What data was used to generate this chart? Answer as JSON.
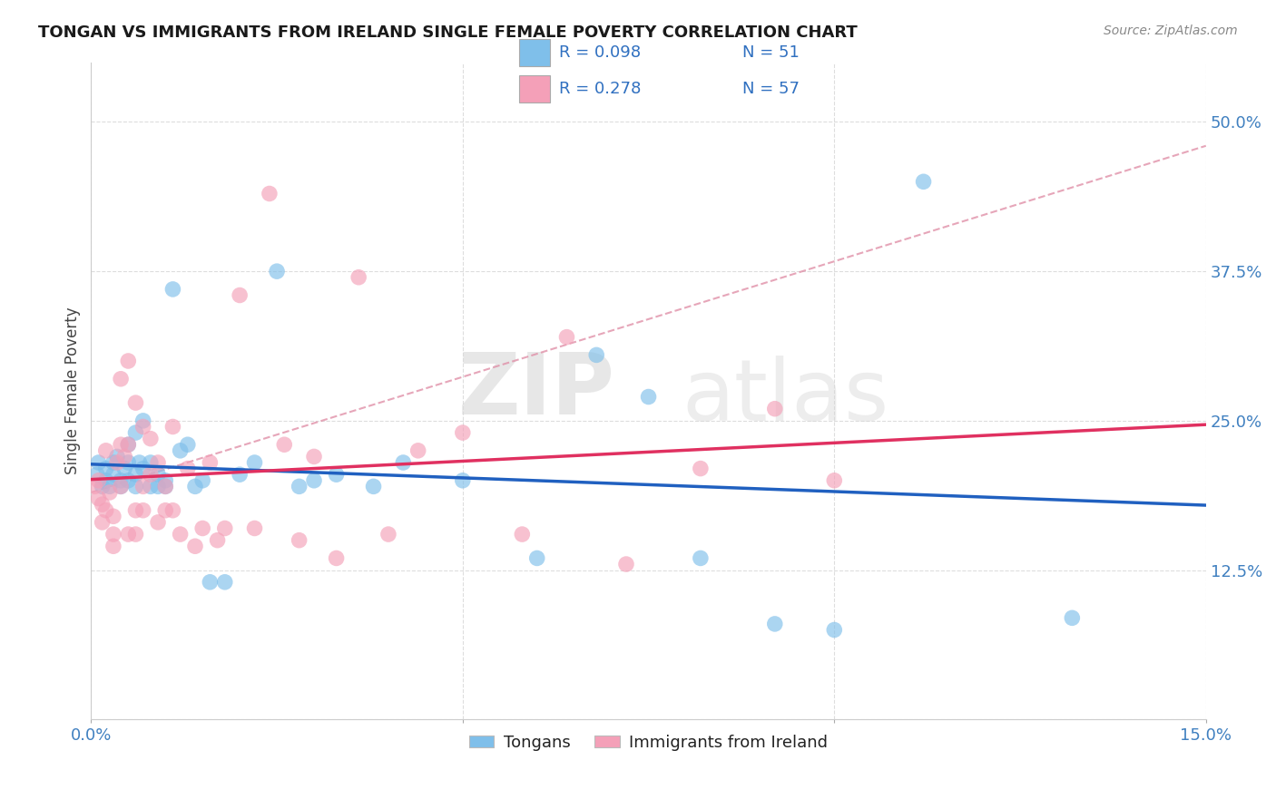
{
  "title": "TONGAN VS IMMIGRANTS FROM IRELAND SINGLE FEMALE POVERTY CORRELATION CHART",
  "source": "Source: ZipAtlas.com",
  "ylabel": "Single Female Poverty",
  "x_min": 0.0,
  "x_max": 0.15,
  "y_min": 0.0,
  "y_max": 0.55,
  "legend_label1": "Tongans",
  "legend_label2": "Immigrants from Ireland",
  "legend_R1": "R = 0.098",
  "legend_N1": "N = 51",
  "legend_R2": "R = 0.278",
  "legend_N2": "N = 57",
  "color_blue": "#7fbfea",
  "color_pink": "#f4a0b8",
  "trend_blue": "#2060c0",
  "trend_pink": "#e03060",
  "trend_dashed_color": "#e090a8",
  "watermark_zip": "ZIP",
  "watermark_atlas": "atlas",
  "tongans_x": [
    0.0008,
    0.001,
    0.0015,
    0.002,
    0.002,
    0.0025,
    0.003,
    0.003,
    0.0035,
    0.004,
    0.004,
    0.0045,
    0.005,
    0.005,
    0.005,
    0.006,
    0.006,
    0.006,
    0.0065,
    0.007,
    0.007,
    0.008,
    0.008,
    0.009,
    0.009,
    0.01,
    0.01,
    0.011,
    0.012,
    0.013,
    0.014,
    0.015,
    0.016,
    0.018,
    0.02,
    0.022,
    0.025,
    0.028,
    0.03,
    0.033,
    0.038,
    0.042,
    0.05,
    0.06,
    0.068,
    0.075,
    0.082,
    0.092,
    0.1,
    0.112,
    0.132
  ],
  "tongans_y": [
    0.205,
    0.215,
    0.195,
    0.21,
    0.2,
    0.195,
    0.215,
    0.205,
    0.22,
    0.2,
    0.195,
    0.21,
    0.23,
    0.215,
    0.2,
    0.205,
    0.195,
    0.24,
    0.215,
    0.25,
    0.21,
    0.195,
    0.215,
    0.205,
    0.195,
    0.2,
    0.195,
    0.36,
    0.225,
    0.23,
    0.195,
    0.2,
    0.115,
    0.115,
    0.205,
    0.215,
    0.375,
    0.195,
    0.2,
    0.205,
    0.195,
    0.215,
    0.2,
    0.135,
    0.305,
    0.27,
    0.135,
    0.08,
    0.075,
    0.45,
    0.085
  ],
  "ireland_x": [
    0.0005,
    0.001,
    0.001,
    0.0015,
    0.0015,
    0.002,
    0.002,
    0.0025,
    0.003,
    0.003,
    0.003,
    0.0035,
    0.004,
    0.004,
    0.004,
    0.0045,
    0.005,
    0.005,
    0.005,
    0.006,
    0.006,
    0.006,
    0.007,
    0.007,
    0.007,
    0.008,
    0.008,
    0.009,
    0.009,
    0.01,
    0.01,
    0.011,
    0.011,
    0.012,
    0.013,
    0.014,
    0.015,
    0.016,
    0.017,
    0.018,
    0.02,
    0.022,
    0.024,
    0.026,
    0.028,
    0.03,
    0.033,
    0.036,
    0.04,
    0.044,
    0.05,
    0.058,
    0.064,
    0.072,
    0.082,
    0.092,
    0.1
  ],
  "ireland_y": [
    0.195,
    0.185,
    0.2,
    0.165,
    0.18,
    0.225,
    0.175,
    0.19,
    0.145,
    0.17,
    0.155,
    0.215,
    0.285,
    0.23,
    0.195,
    0.22,
    0.155,
    0.3,
    0.23,
    0.155,
    0.175,
    0.265,
    0.195,
    0.245,
    0.175,
    0.205,
    0.235,
    0.165,
    0.215,
    0.175,
    0.195,
    0.245,
    0.175,
    0.155,
    0.21,
    0.145,
    0.16,
    0.215,
    0.15,
    0.16,
    0.355,
    0.16,
    0.44,
    0.23,
    0.15,
    0.22,
    0.135,
    0.37,
    0.155,
    0.225,
    0.24,
    0.155,
    0.32,
    0.13,
    0.21,
    0.26,
    0.2
  ]
}
